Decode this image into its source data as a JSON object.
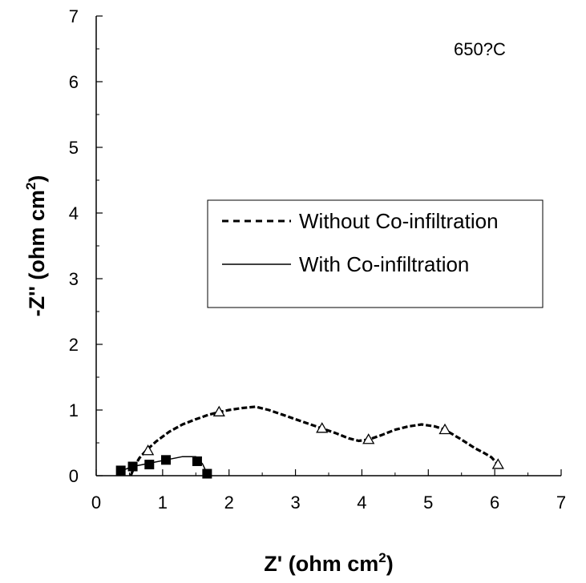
{
  "chart_data": {
    "type": "line",
    "annotation": "650?C",
    "xlabel": {
      "main": "Z' (ohm cm",
      "sup": "2",
      "end": ")"
    },
    "ylabel": {
      "main": "-Z'' (ohm cm",
      "sup": "2",
      "end": ")"
    },
    "xlim": [
      0,
      7
    ],
    "ylim": [
      0,
      7
    ],
    "xticks": [
      0,
      1,
      2,
      3,
      4,
      5,
      6,
      7
    ],
    "yticks": [
      0,
      1,
      2,
      3,
      4,
      5,
      6,
      7
    ],
    "grid": false,
    "legend_position": "center-right",
    "series": [
      {
        "name": "Without Co-infiltration",
        "line_style": "dashed",
        "marker": "open-triangle",
        "line": [
          [
            0.52,
            0.0
          ],
          [
            0.58,
            0.15
          ],
          [
            0.65,
            0.27
          ],
          [
            0.75,
            0.38
          ],
          [
            0.9,
            0.52
          ],
          [
            1.1,
            0.67
          ],
          [
            1.3,
            0.78
          ],
          [
            1.5,
            0.86
          ],
          [
            1.7,
            0.93
          ],
          [
            1.85,
            0.97
          ],
          [
            2.0,
            1.0
          ],
          [
            2.2,
            1.03
          ],
          [
            2.4,
            1.05
          ],
          [
            2.6,
            1.0
          ],
          [
            2.8,
            0.93
          ],
          [
            3.0,
            0.86
          ],
          [
            3.2,
            0.79
          ],
          [
            3.4,
            0.72
          ],
          [
            3.6,
            0.65
          ],
          [
            3.8,
            0.57
          ],
          [
            3.95,
            0.53
          ],
          [
            4.1,
            0.55
          ],
          [
            4.3,
            0.62
          ],
          [
            4.5,
            0.7
          ],
          [
            4.7,
            0.75
          ],
          [
            4.9,
            0.78
          ],
          [
            5.1,
            0.75
          ],
          [
            5.25,
            0.7
          ],
          [
            5.5,
            0.55
          ],
          [
            5.7,
            0.42
          ],
          [
            5.85,
            0.34
          ],
          [
            5.95,
            0.28
          ],
          [
            6.05,
            0.17
          ]
        ],
        "points": [
          [
            0.78,
            0.38
          ],
          [
            1.85,
            0.97
          ],
          [
            3.4,
            0.72
          ],
          [
            4.1,
            0.55
          ],
          [
            5.25,
            0.7
          ],
          [
            6.05,
            0.17
          ]
        ]
      },
      {
        "name": "With Co-infiltration",
        "line_style": "solid",
        "marker": "filled-square",
        "line": [
          [
            0.35,
            0.0
          ],
          [
            0.42,
            0.09
          ],
          [
            0.55,
            0.14
          ],
          [
            0.7,
            0.17
          ],
          [
            0.85,
            0.2
          ],
          [
            1.05,
            0.24
          ],
          [
            1.3,
            0.29
          ],
          [
            1.5,
            0.29
          ],
          [
            1.6,
            0.18
          ],
          [
            1.67,
            0.03
          ]
        ],
        "points": [
          [
            0.37,
            0.08
          ],
          [
            0.55,
            0.14
          ],
          [
            0.8,
            0.17
          ],
          [
            1.05,
            0.24
          ],
          [
            1.52,
            0.22
          ],
          [
            1.67,
            0.03
          ]
        ]
      }
    ]
  }
}
